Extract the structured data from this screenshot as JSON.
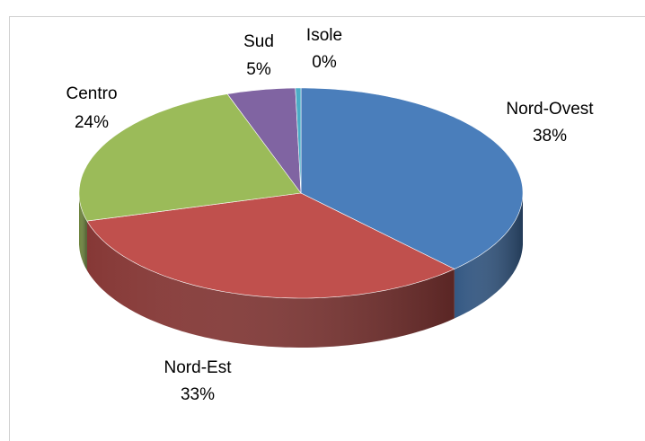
{
  "chart_data": {
    "type": "pie3d",
    "categories": [
      "Nord-Ovest",
      "Nord-Est",
      "Centro",
      "Sud",
      "Isole"
    ],
    "values": [
      38,
      33,
      24,
      5,
      0.4
    ],
    "value_labels": [
      "38%",
      "33%",
      "24%",
      "5%",
      "0%"
    ],
    "colors": [
      "#4a7ebb",
      "#c0504d",
      "#9bbb59",
      "#8064a2",
      "#4bacc6"
    ]
  }
}
